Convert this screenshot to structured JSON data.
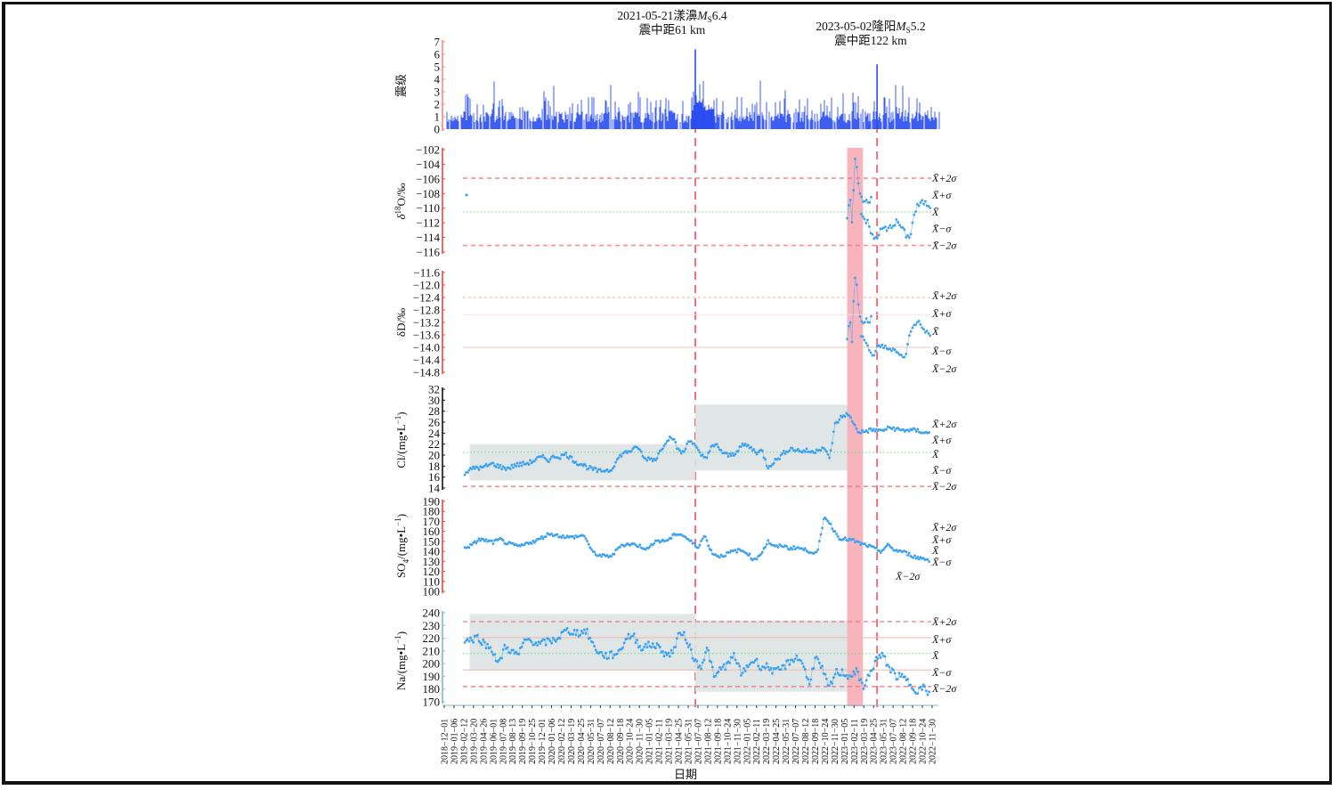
{
  "chart_data": [
    {
      "type": "bar",
      "panel": "magnitude",
      "ylabel": "震级",
      "ylim": [
        0,
        7
      ],
      "yticks": [
        "0",
        "1",
        "2",
        "3",
        "4",
        "5",
        "6",
        "7"
      ],
      "bar_color": "#2a4cf0",
      "baseline_magnitude": 1.3,
      "events": [
        {
          "date": "2021-05-21",
          "magnitude": 6.4,
          "label_line1": "2021-05-21漾濞",
          "ms_symbol": "M",
          "ms_sub": "S",
          "mag_text": "6.4",
          "label_line2": "震中距61 km"
        },
        {
          "date": "2023-05-02",
          "magnitude": 5.2,
          "label_line1": "2023-05-02隆阳",
          "ms_symbol": "M",
          "ms_sub": "S",
          "mag_text": "5.2",
          "label_line2": "震中距122 km"
        }
      ]
    },
    {
      "type": "scatter",
      "panel": "d18O",
      "ylabel_main": "δ",
      "ylabel_sup": "18",
      "ylabel_rest": "O/‰",
      "ylim": [
        -116,
        -102
      ],
      "yticks": [
        "-102",
        "-104",
        "-106",
        "-108",
        "-110",
        "-112",
        "-114",
        "-116"
      ],
      "mean": -110.5,
      "sigma": 2.3,
      "anomaly_segments": [
        {
          "start": "2023-01-05",
          "values": [
            -111.5,
            -110,
            -109,
            -112.5,
            -108,
            -103.5,
            -104.5,
            -106,
            -107.5,
            -108.5,
            -109,
            -109.5,
            -109,
            -108.5,
            -109.5,
            -108.6,
            -108.5
          ]
        },
        {
          "start": "2023-03-01",
          "values": [
            -110.5,
            -111.5,
            -112,
            -113.5,
            -114.2,
            -113.8,
            -113,
            -112.7,
            -113.1,
            -112.4,
            -112.2,
            -111.8,
            -112.5,
            -113.2,
            -114,
            -113.6,
            -111,
            -109.8,
            -109.4,
            -109.2,
            -109.5,
            -109.7
          ]
        }
      ],
      "stat_labels": [
        "X̄+2σ",
        "X̄+σ",
        "X̄",
        "X̄−σ",
        "X̄−2σ"
      ]
    },
    {
      "type": "scatter",
      "panel": "dD",
      "ylabel_main": "δD/‰",
      "ylim": [
        -14.8,
        -11.6
      ],
      "yticks": [
        "-11.6",
        "-12.0",
        "-12.4",
        "-12.8",
        "-13.2",
        "-13.6",
        "-14.0",
        "-14.4",
        "-14.8"
      ],
      "mean": -13.4,
      "sigma": 0.5,
      "anomaly_segments": [
        {
          "start": "2023-01-05",
          "values": [
            -13.7,
            -13.3,
            -13.1,
            -13.9,
            -12.6,
            -11.8,
            -11.9,
            -12.5,
            -12.9,
            -13.2,
            -13.3,
            -13.2,
            -13.1,
            -13.05,
            -13.3,
            -13.1,
            -13.0
          ]
        },
        {
          "start": "2023-03-01",
          "values": [
            -13.6,
            -13.8,
            -14.1,
            -14.3,
            -14.0,
            -13.95,
            -14.0,
            -14.1,
            -14.05,
            -14.2,
            -14.3,
            -14.25,
            -13.5,
            -13.3,
            -13.1,
            -13.4,
            -13.5,
            -13.6
          ]
        }
      ],
      "stat_labels": [
        "X̄+2σ",
        "X̄+σ",
        "X̄",
        "X̄−σ",
        "X̄−2σ"
      ]
    },
    {
      "type": "scatter",
      "panel": "Cl",
      "ylabel_main": "Cl/(mg•L",
      "ylabel_sup": "−1",
      "ylabel_rest": ")",
      "ylim": [
        14,
        32
      ],
      "yticks": [
        "14",
        "16",
        "18",
        "20",
        "22",
        "24",
        "26",
        "28",
        "30",
        "32"
      ],
      "mean": 20.5,
      "sigma": 3.0,
      "bands": [
        {
          "start": "2018-12-20",
          "end": "2021-05-21",
          "low": 15.4,
          "high": 22.0
        },
        {
          "start": "2021-05-21",
          "end": "2023-01-05",
          "low": 17.2,
          "high": 29.2
        }
      ],
      "series": [
        16.8,
        17.3,
        17.8,
        17.6,
        18.1,
        18.4,
        18.0,
        17.6,
        17.7,
        18.2,
        18.3,
        18.5,
        18.8,
        19.4,
        19.6,
        19.1,
        19.8,
        19.7,
        20.2,
        19.4,
        18.6,
        18.3,
        17.7,
        17.4,
        17.0,
        17.3,
        17.2,
        18.9,
        20.2,
        20.6,
        21.0,
        21.4,
        19.3,
        19.4,
        19.2,
        21.0,
        22.8,
        23.4,
        21.0,
        20.3,
        23.0,
        21.8,
        20.0,
        19.6,
        21.4,
        21.8,
        20.4,
        19.9,
        20.2,
        21.4,
        21.9,
        21.3,
        20.5,
        20.8,
        17.8,
        18.7,
        19.5,
        20.5,
        21.2,
        21.0,
        20.7,
        20.8,
        20.5,
        21.1,
        21.4,
        19.3,
        25.5,
        26.8,
        27.5,
        26.5,
        24.4,
        24.2,
        24.5,
        24.6,
        24.4,
        24.7,
        25.0,
        24.7,
        24.5,
        24.6,
        24.5,
        24.4,
        24.1,
        23.9
      ],
      "stat_labels": [
        "X̄+2σ",
        "X̄+σ",
        "X̄",
        "X̄−σ",
        "X̄−2σ"
      ]
    },
    {
      "type": "scatter",
      "panel": "SO4",
      "ylabel_main": "SO",
      "ylabel_sub": "4",
      "ylabel_rest": "/(mg•L",
      "ylabel_sup": "−1",
      "ylabel_end": ")",
      "ylim": [
        100,
        190
      ],
      "yticks": [
        "100",
        "110",
        "120",
        "130",
        "140",
        "150",
        "160",
        "170",
        "180",
        "190"
      ],
      "series": [
        144,
        146,
        152,
        151,
        149,
        152,
        148,
        146,
        145,
        149,
        150,
        154,
        158,
        156,
        155,
        154,
        155,
        156,
        140,
        136,
        135,
        136,
        146,
        147,
        147,
        145,
        142,
        151,
        150,
        152,
        158,
        156,
        150,
        144,
        156,
        139,
        135,
        137,
        140,
        141,
        139,
        131,
        138,
        150,
        144,
        146,
        143,
        144,
        142,
        140,
        138,
        176,
        165,
        154,
        152,
        151,
        148,
        146,
        143,
        140,
        146,
        141,
        140,
        137,
        134,
        133,
        131
      ],
      "stat_labels": [
        "X̄+2σ",
        "X̄+σ",
        "X̄",
        "X̄−σ",
        "X̄−2σ"
      ]
    },
    {
      "type": "scatter",
      "panel": "Na",
      "ylabel_main": "Na/(mg•L",
      "ylabel_sup": "−1",
      "ylabel_rest": ")",
      "ylim": [
        170,
        240
      ],
      "yticks": [
        "170",
        "180",
        "190",
        "200",
        "210",
        "220",
        "230",
        "240"
      ],
      "mean": 208,
      "sigma": 12.5,
      "bands": [
        {
          "start": "2018-12-20",
          "end": "2021-05-21",
          "low": 195,
          "high": 239
        },
        {
          "start": "2021-05-21",
          "end": "2023-01-05",
          "low": 178,
          "high": 234
        }
      ],
      "series": [
        218,
        219,
        221,
        215,
        212,
        199,
        214,
        209,
        207,
        219,
        218,
        215,
        217,
        218,
        221,
        226,
        225,
        224,
        226,
        215,
        208,
        206,
        207,
        210,
        221,
        222,
        213,
        214,
        215,
        212,
        206,
        211,
        226,
        218,
        203,
        198,
        212,
        188,
        197,
        199,
        207,
        191,
        199,
        203,
        197,
        198,
        193,
        196,
        201,
        205,
        202,
        184,
        205,
        195,
        180,
        193,
        193,
        190,
        194,
        182,
        191,
        204,
        206,
        196,
        190,
        189,
        184,
        179,
        181,
        176
      ],
      "stat_labels": [
        "X̄+2σ",
        "X̄+σ",
        "X̄",
        "X̄−σ",
        "X̄−2σ"
      ]
    }
  ],
  "x_axis": {
    "label": "日期",
    "start": "2018-12-01",
    "end": "2023-11-30",
    "tick_labels": [
      "2018-12-01",
      "2019-01-06",
      "2019-02-12",
      "2019-03-20",
      "2019-04-26",
      "2019-06-01",
      "2019-07-08",
      "2019-08-13",
      "2019-09-19",
      "2019-10-25",
      "2019-12-01",
      "2020-01-06",
      "2020-02-12",
      "2020-03-19",
      "2020-04-25",
      "2020-05-31",
      "2020-07-07",
      "2020-08-12",
      "2020-09-18",
      "2020-10-24",
      "2020-11-30",
      "2021-01-05",
      "2021-02-11",
      "2021-03-19",
      "2021-04-25",
      "2021-05-31",
      "2021-07-07",
      "2021-08-12",
      "2021-09-18",
      "2021-10-24",
      "2021-11-30",
      "2022-01-05",
      "2022-02-11",
      "2022-03-19",
      "2022-04-25",
      "2022-05-31",
      "2022-07-07",
      "2022-08-12",
      "2022-09-18",
      "2022-10-24",
      "2022-11-30",
      "2023-01-05",
      "2023-02-11",
      "2023-03-19",
      "2023-04-25",
      "2023-05-31",
      "2023-07-07",
      "2022-08-12",
      "2022-09-18",
      "2022-10-24",
      "2022-11-30"
    ]
  },
  "highlight": {
    "start": "2023-01-05",
    "end": "2023-03-01"
  },
  "colors": {
    "points": "#3da2f0",
    "bars": "#2a4cf0",
    "event_line": "#f0606a",
    "highlight": "#f7a7b0",
    "band": "#dde3e3",
    "mean_line": "#6fe08a",
    "sigma2_line": "#f47a86",
    "sigma1_line": "#f5b8a8"
  }
}
